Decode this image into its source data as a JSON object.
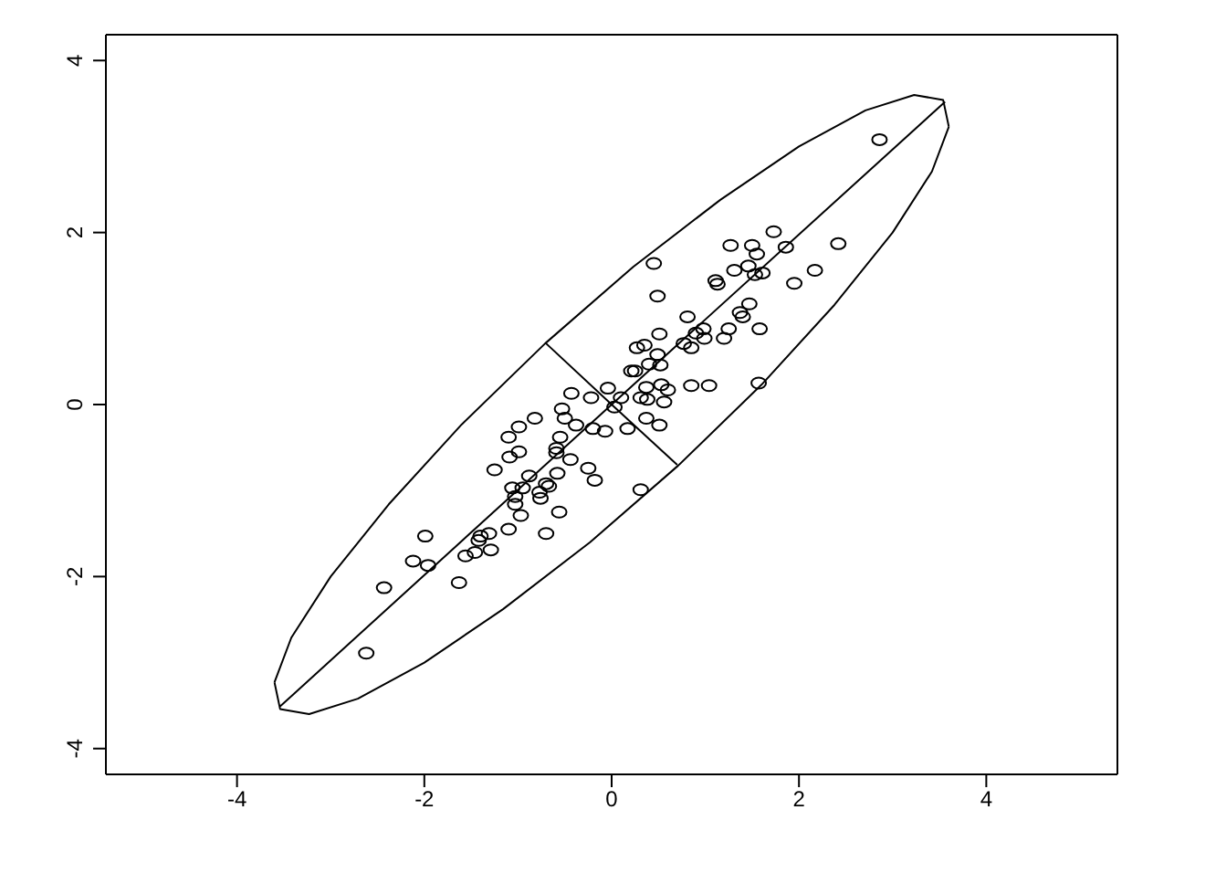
{
  "chart_data": {
    "type": "scatter",
    "xlim": [
      -5.4,
      5.4
    ],
    "ylim": [
      -4.3,
      4.3
    ],
    "xticks": [
      -4,
      -2,
      0,
      2,
      4
    ],
    "yticks": [
      -4,
      -2,
      0,
      2,
      4
    ],
    "legend": false,
    "marker": "circle",
    "series": [
      {
        "color": "#000000",
        "x": [
          2.86,
          1.73,
          1.27,
          1.5,
          1.86,
          2.42,
          1.55,
          0.45,
          1.31,
          1.46,
          1.61,
          1.53,
          2.17,
          1.11,
          1.13,
          1.95,
          0.49,
          1.47,
          1.37,
          1.4,
          0.81,
          1.25,
          1.58,
          0.98,
          0.9,
          0.51,
          1.2,
          0.99,
          0.77,
          0.85,
          0.35,
          0.27,
          0.49,
          0.4,
          0.52,
          0.21,
          0.25,
          1.57,
          0.85,
          1.04,
          0.37,
          0.53,
          0.6,
          -0.04,
          -0.43,
          -0.22,
          0.1,
          0.31,
          0.38,
          0.56,
          0.03,
          -0.53,
          -0.82,
          -0.5,
          -0.38,
          0.37,
          0.51,
          0.17,
          -0.2,
          -0.07,
          -0.99,
          -1.1,
          -0.55,
          -0.99,
          -0.59,
          -1.09,
          -0.59,
          -0.44,
          -1.25,
          -0.58,
          -0.25,
          -0.88,
          -0.18,
          -0.7,
          -0.67,
          -1.06,
          -0.95,
          0.31,
          -0.77,
          -1.03,
          -0.76,
          -1.03,
          -0.56,
          -0.97,
          -1.1,
          -0.7,
          -1.99,
          -1.4,
          -1.31,
          -1.42,
          -1.29,
          -1.46,
          -1.56,
          -2.12,
          -1.96,
          -1.63,
          -2.43,
          -2.62
        ],
        "values": [
          3.08,
          2.01,
          1.85,
          1.85,
          1.83,
          1.87,
          1.75,
          1.64,
          1.56,
          1.61,
          1.53,
          1.51,
          1.56,
          1.44,
          1.4,
          1.41,
          1.26,
          1.17,
          1.07,
          1.02,
          1.02,
          0.88,
          0.88,
          0.88,
          0.83,
          0.82,
          0.77,
          0.77,
          0.71,
          0.66,
          0.69,
          0.66,
          0.58,
          0.47,
          0.46,
          0.39,
          0.39,
          0.25,
          0.22,
          0.22,
          0.2,
          0.23,
          0.17,
          0.19,
          0.13,
          0.08,
          0.08,
          0.08,
          0.06,
          0.03,
          -0.03,
          -0.05,
          -0.16,
          -0.16,
          -0.24,
          -0.16,
          -0.24,
          -0.28,
          -0.28,
          -0.31,
          -0.26,
          -0.38,
          -0.38,
          -0.55,
          -0.51,
          -0.61,
          -0.56,
          -0.64,
          -0.76,
          -0.8,
          -0.74,
          -0.83,
          -0.88,
          -0.92,
          -0.95,
          -0.97,
          -0.97,
          -0.99,
          -1.02,
          -1.07,
          -1.09,
          -1.16,
          -1.25,
          -1.29,
          -1.45,
          -1.5,
          -1.53,
          -1.53,
          -1.5,
          -1.58,
          -1.69,
          -1.72,
          -1.76,
          -1.82,
          -1.87,
          -2.07,
          -2.13,
          -2.89
        ]
      },
      {
        "type": "line",
        "marker": "none",
        "color": "#000000",
        "x": [
          -3.6,
          -3.42,
          -3.0,
          -2.38,
          -1.6,
          -0.71,
          0.23,
          1.16,
          2.0,
          2.71,
          3.23,
          3.54,
          3.6
        ],
        "values": [
          -3.23,
          -2.71,
          -2.0,
          -1.16,
          -0.23,
          0.71,
          1.6,
          2.38,
          3.0,
          3.42,
          3.6,
          3.54,
          3.23
        ]
      },
      {
        "type": "line",
        "marker": "none",
        "color": "#000000",
        "x": [
          -3.6,
          -3.54,
          -3.23,
          -2.71,
          -2.0,
          -1.16,
          -0.23,
          0.71,
          1.6,
          2.38,
          3.0,
          3.42,
          3.6
        ],
        "values": [
          -3.23,
          -3.54,
          -3.6,
          -3.42,
          -3.0,
          -2.38,
          -1.6,
          -0.71,
          0.23,
          1.16,
          2.0,
          2.71,
          3.23
        ]
      },
      {
        "type": "line",
        "marker": "none",
        "color": "#000000",
        "x": [
          -3.54,
          0,
          3.56
        ],
        "values": [
          -3.51,
          0,
          3.52
        ]
      },
      {
        "type": "line",
        "marker": "none",
        "color": "#000000",
        "x": [
          -0.7,
          0,
          0.7
        ],
        "values": [
          0.71,
          0,
          -0.7
        ]
      }
    ]
  }
}
